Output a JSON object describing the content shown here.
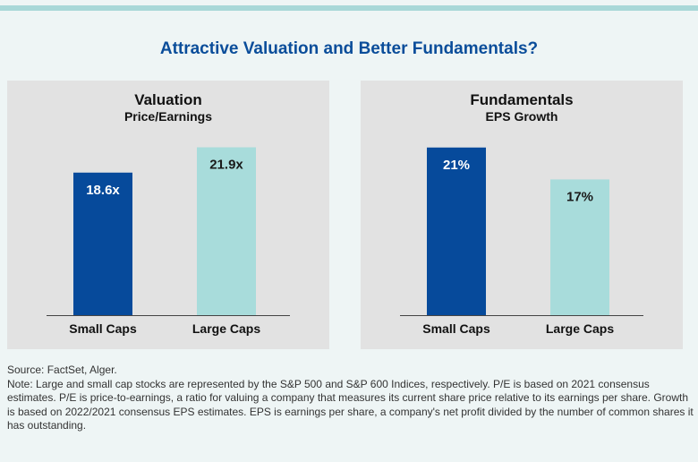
{
  "main_title": "Attractive Valuation and Better Fundamentals?",
  "colors": {
    "small_caps": "#064a9b",
    "large_caps": "#a8dcdb",
    "title": "#0a4d9a",
    "panel_bg": "#e2e2e2",
    "page_bg": "#eef5f5"
  },
  "chart_data": [
    {
      "type": "bar",
      "title": "Valuation",
      "subtitle": "Price/Earnings",
      "categories": [
        "Small Caps",
        "Large Caps"
      ],
      "values": [
        18.6,
        21.9
      ],
      "labels": [
        "18.6x",
        "21.9x"
      ],
      "ylim": [
        0,
        25
      ]
    },
    {
      "type": "bar",
      "title": "Fundamentals",
      "subtitle": "EPS Growth",
      "categories": [
        "Small Caps",
        "Large Caps"
      ],
      "values": [
        21,
        17
      ],
      "labels": [
        "21%",
        "17%"
      ],
      "ylim": [
        0,
        24
      ]
    }
  ],
  "source": "Source: FactSet, Alger.",
  "note": "Note: Large and small cap stocks are represented by the S&P 500 and S&P 600 Indices, respectively. P/E is based on 2021 consensus estimates. P/E is price-to-earnings, a ratio for valuing a company that measures its current share price relative to its earnings per share. Growth is based on 2022/2021 consensus EPS estimates. EPS is earnings per share, a company's net profit divided by the number of common shares it has outstanding."
}
